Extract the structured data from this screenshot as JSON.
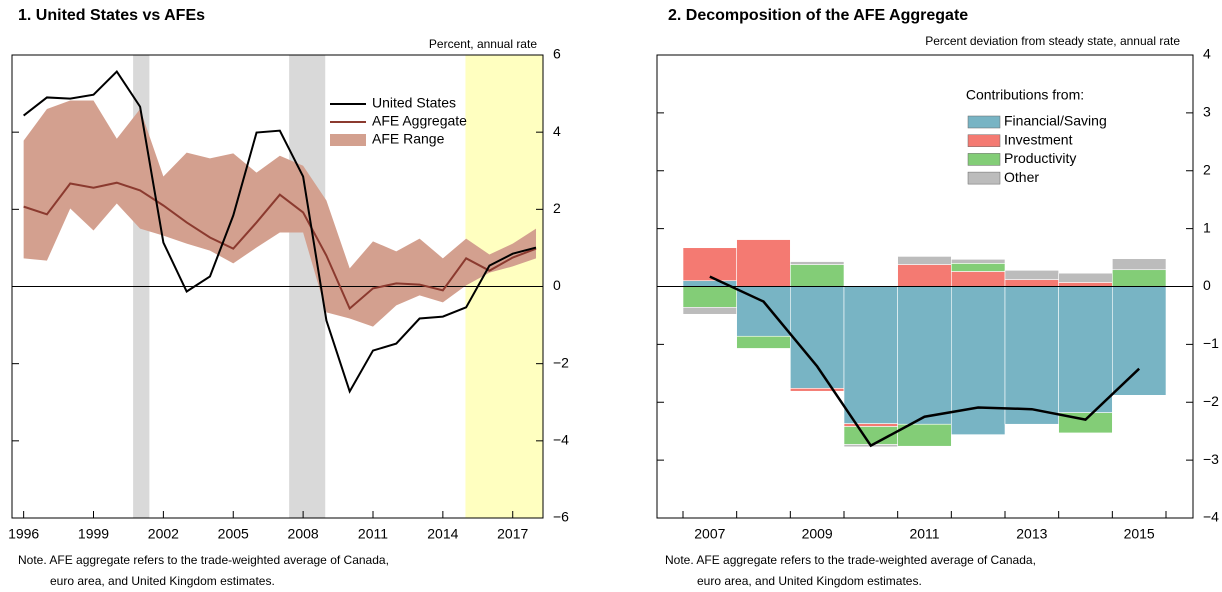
{
  "chart_data": [
    {
      "type": "line",
      "title": "1. United States vs AFEs",
      "y_axis_label": "Percent, annual rate",
      "note": [
        "Note. AFE aggregate refers to the trade-weighted average of Canada,",
        "euro area, and United Kingdom estimates."
      ],
      "x": [
        1996,
        1997,
        1998,
        1999,
        2000,
        2001,
        2002,
        2003,
        2004,
        2005,
        2006,
        2007,
        2008,
        2009,
        2010,
        2011,
        2012,
        2013,
        2014,
        2015,
        2016,
        2017,
        2018
      ],
      "xlim": [
        1995.5,
        2018.3
      ],
      "xticks": [
        1996,
        1999,
        2002,
        2005,
        2008,
        2011,
        2014,
        2017
      ],
      "ylim": [
        -6,
        6
      ],
      "yticks": [
        {
          "value": -6,
          "label": "−6"
        },
        {
          "value": -4,
          "label": "−4"
        },
        {
          "value": -2,
          "label": "−2"
        },
        0,
        2,
        4,
        6
      ],
      "zero_line": true,
      "shaded_regions": [
        {
          "start": 2000.7,
          "end": 2001.4,
          "color": "#d9d9d9"
        },
        {
          "start": 2007.4,
          "end": 2008.95,
          "color": "#d9d9d9"
        },
        {
          "start": 2014.97,
          "end": 2018.3,
          "color": "#ffffc0"
        }
      ],
      "series": [
        {
          "name": "AFE Range",
          "color": "#d3a08f",
          "high": [
            3.78,
            4.6,
            4.82,
            4.82,
            3.83,
            4.6,
            2.85,
            3.47,
            3.32,
            3.45,
            2.95,
            3.39,
            3.13,
            2.23,
            0.47,
            1.17,
            0.91,
            1.24,
            0.73,
            1.24,
            0.83,
            1.11,
            1.5
          ],
          "low": [
            0.73,
            0.67,
            2.02,
            1.45,
            2.15,
            1.5,
            1.32,
            1.11,
            0.93,
            0.6,
            1.01,
            1.4,
            1.4,
            -0.67,
            -0.83,
            -1.04,
            -0.49,
            -0.23,
            -0.41,
            0.03,
            0.36,
            0.52,
            0.73
          ]
        },
        {
          "name": "AFE Aggregate",
          "color": "#8b3a2f",
          "values": [
            2.07,
            1.87,
            2.67,
            2.56,
            2.69,
            2.49,
            2.1,
            1.66,
            1.27,
            0.98,
            1.66,
            2.38,
            1.92,
            0.8,
            -0.57,
            -0.05,
            0.08,
            0.05,
            -0.1,
            0.73,
            0.41,
            0.75,
            0.98
          ]
        },
        {
          "name": "United States",
          "color": "#000000",
          "values": [
            4.43,
            4.9,
            4.87,
            4.97,
            5.57,
            4.66,
            1.14,
            -0.13,
            0.26,
            1.84,
            3.99,
            4.04,
            2.85,
            -0.88,
            -2.72,
            -1.66,
            -1.48,
            -0.83,
            -0.78,
            -0.54,
            0.54,
            0.85,
            1.01
          ]
        }
      ],
      "legend_order": [
        2,
        1,
        0
      ]
    },
    {
      "type": "bar",
      "title": "2. Decomposition of the AFE Aggregate",
      "y_axis_label": "Percent deviation from steady state, annual rate",
      "legend_title": "Contributions from:",
      "note": [
        "Note. AFE aggregate refers to the trade-weighted average of Canada,",
        "euro area, and United Kingdom estimates."
      ],
      "categories": [
        "2007",
        null,
        "2009",
        null,
        "2011",
        null,
        "2013",
        null,
        "2015"
      ],
      "ylim": [
        -4,
        4
      ],
      "yticks": [
        {
          "value": -4,
          "label": "−4"
        },
        {
          "value": -3,
          "label": "−3"
        },
        {
          "value": -2,
          "label": "−2"
        },
        {
          "value": -1,
          "label": "−1"
        },
        0,
        1,
        2,
        3,
        4
      ],
      "zero_line": true,
      "stacked": true,
      "series": [
        {
          "name": "Financial/Saving",
          "color": "#78b4c4",
          "values": [
            0.1,
            -0.86,
            -1.76,
            -2.37,
            -2.38,
            -2.56,
            -2.38,
            -2.18,
            -1.88
          ]
        },
        {
          "name": "Investment",
          "color": "#f47a72",
          "values": [
            0.57,
            0.81,
            -0.05,
            -0.05,
            0.38,
            0.26,
            0.12,
            0.07,
            0
          ]
        },
        {
          "name": "Productivity",
          "color": "#83cd77",
          "values": [
            -0.36,
            -0.21,
            0.38,
            -0.31,
            -0.38,
            0.14,
            0,
            -0.35,
            0.29
          ]
        },
        {
          "name": "Other",
          "color": "#bcbcbc",
          "values": [
            -0.12,
            0,
            0.05,
            -0.04,
            0.14,
            0.07,
            0.16,
            0.16,
            0.19
          ]
        }
      ],
      "line": {
        "color": "#000000",
        "values": [
          0.17,
          -0.26,
          -1.38,
          -2.75,
          -2.25,
          -2.09,
          -2.12,
          -2.3,
          -1.42
        ]
      }
    }
  ]
}
